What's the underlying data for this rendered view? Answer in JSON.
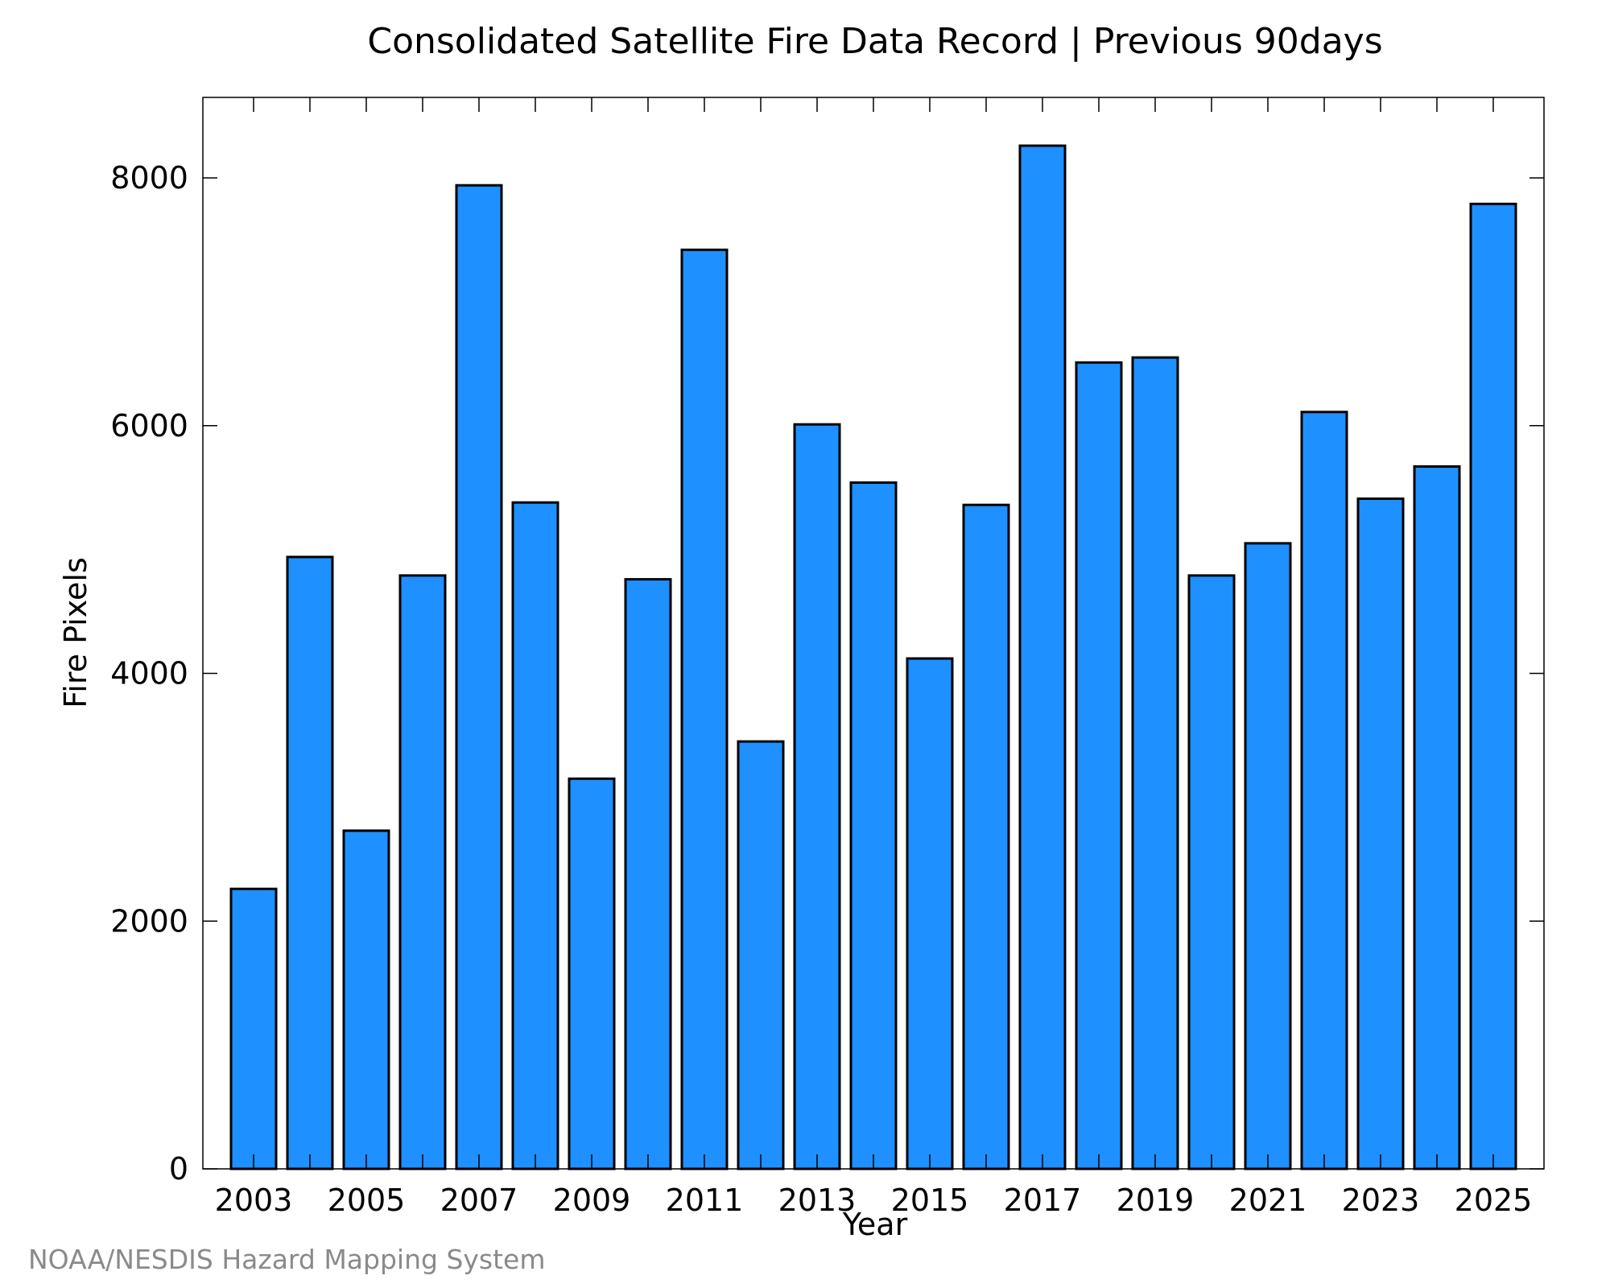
{
  "chart_data": {
    "type": "bar",
    "title": "Consolidated Satellite Fire Data Record | Previous 90days",
    "xlabel": "Year",
    "ylabel": "Fire Pixels",
    "categories": [
      "2003",
      "2004",
      "2005",
      "2006",
      "2007",
      "2008",
      "2009",
      "2010",
      "2011",
      "2012",
      "2013",
      "2014",
      "2015",
      "2016",
      "2017",
      "2018",
      "2019",
      "2020",
      "2021",
      "2022",
      "2023",
      "2024",
      "2025"
    ],
    "values": [
      2260,
      4940,
      2730,
      4790,
      7940,
      5380,
      3150,
      4760,
      7420,
      3450,
      6010,
      5540,
      4120,
      5360,
      8260,
      6510,
      6550,
      4790,
      5050,
      6110,
      5410,
      5670,
      7790
    ],
    "x_tick_labels": [
      "2003",
      "2005",
      "2007",
      "2009",
      "2011",
      "2013",
      "2015",
      "2017",
      "2019",
      "2021",
      "2023",
      "2025"
    ],
    "y_ticks": [
      0,
      2000,
      4000,
      6000,
      8000
    ],
    "ylim": [
      0,
      8650
    ],
    "bar_color": "#1e90ff",
    "edge_color": "#000000",
    "grid": false,
    "legend": "none"
  },
  "footer": {
    "credit": "NOAA/NESDIS Hazard Mapping System"
  }
}
